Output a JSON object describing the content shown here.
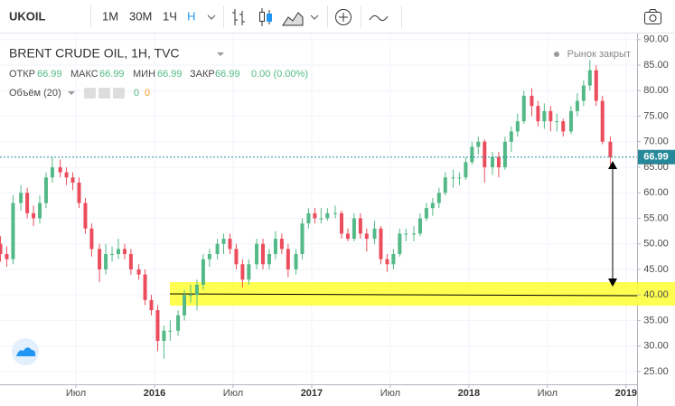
{
  "toolbar": {
    "symbol": "UKOIL",
    "intervals": [
      "1М",
      "30М",
      "1Ч",
      "Н"
    ]
  },
  "legend": {
    "title": "BRENT CRUDE OIL, 1H, TVC",
    "status": "Рынок закрыт",
    "fields": [
      {
        "label": "ОТКР",
        "value": "66.99"
      },
      {
        "label": "МАКС",
        "value": "66.99"
      },
      {
        "label": "МИН",
        "value": "66.99"
      },
      {
        "label": "ЗАКР",
        "value": "66.99"
      }
    ],
    "change": "0.00 (0.00%)",
    "volume": "Объём (20)",
    "volume_values": [
      "0",
      "0"
    ]
  },
  "chart_data": {
    "type": "candlestick",
    "x": [
      2015.02,
      2015.06,
      2015.1,
      2015.15,
      2015.19,
      2015.23,
      2015.27,
      2015.31,
      2015.35,
      2015.4,
      2015.44,
      2015.48,
      2015.52,
      2015.56,
      2015.6,
      2015.65,
      2015.69,
      2015.73,
      2015.77,
      2015.81,
      2015.85,
      2015.9,
      2015.94,
      2015.98,
      2016.02,
      2016.06,
      2016.1,
      2016.15,
      2016.19,
      2016.23,
      2016.27,
      2016.31,
      2016.35,
      2016.4,
      2016.44,
      2016.48,
      2016.52,
      2016.56,
      2016.6,
      2016.65,
      2016.69,
      2016.73,
      2016.77,
      2016.81,
      2016.85,
      2016.9,
      2016.94,
      2016.98,
      2017.02,
      2017.06,
      2017.1,
      2017.15,
      2017.19,
      2017.23,
      2017.27,
      2017.31,
      2017.35,
      2017.4,
      2017.44,
      2017.48,
      2017.52,
      2017.56,
      2017.6,
      2017.65,
      2017.69,
      2017.73,
      2017.77,
      2017.81,
      2017.85,
      2017.9,
      2017.94,
      2017.98,
      2018.02,
      2018.06,
      2018.1,
      2018.15,
      2018.19,
      2018.23,
      2018.27,
      2018.31,
      2018.35,
      2018.4,
      2018.44,
      2018.48,
      2018.52,
      2018.56,
      2018.6,
      2018.65,
      2018.69,
      2018.73,
      2018.77,
      2018.81,
      2018.85,
      2018.9
    ],
    "candles": [
      [
        50,
        51.5,
        46.5,
        48
      ],
      [
        48,
        49.5,
        45.5,
        47
      ],
      [
        47,
        59.5,
        46,
        58
      ],
      [
        58,
        61.5,
        56.5,
        60
      ],
      [
        60,
        61,
        55,
        56
      ],
      [
        56,
        57.5,
        53.5,
        55
      ],
      [
        55,
        59.5,
        54,
        58
      ],
      [
        58,
        64,
        57,
        63
      ],
      [
        63,
        67,
        62,
        65
      ],
      [
        65,
        66.5,
        63,
        64
      ],
      [
        64,
        65,
        61.5,
        63
      ],
      [
        63,
        64,
        60.5,
        62
      ],
      [
        62,
        63,
        57,
        58
      ],
      [
        58,
        59,
        52,
        53
      ],
      [
        53,
        54,
        47.5,
        49
      ],
      [
        49,
        50,
        42.5,
        45
      ],
      [
        45,
        50,
        44,
        48
      ],
      [
        48,
        49.5,
        46.5,
        48
      ],
      [
        48,
        51,
        47,
        49
      ],
      [
        49,
        50,
        47,
        48
      ],
      [
        48,
        49,
        44,
        45
      ],
      [
        45,
        46,
        43,
        44
      ],
      [
        44,
        45,
        38,
        39
      ],
      [
        39,
        40,
        36,
        37
      ],
      [
        37,
        38,
        29,
        31
      ],
      [
        31,
        34,
        27.5,
        33
      ],
      [
        33,
        35,
        31,
        33
      ],
      [
        33,
        37,
        32,
        36
      ],
      [
        36,
        41,
        35,
        40
      ],
      [
        40,
        42,
        38.5,
        40
      ],
      [
        40,
        43,
        37,
        42
      ],
      [
        42,
        48,
        41,
        47
      ],
      [
        47,
        49,
        45.5,
        48
      ],
      [
        48,
        51,
        47,
        50
      ],
      [
        50,
        52,
        48,
        51
      ],
      [
        51,
        52,
        48,
        49
      ],
      [
        49,
        50,
        45,
        46
      ],
      [
        46,
        47,
        41.5,
        43
      ],
      [
        43,
        47,
        42,
        46
      ],
      [
        46,
        51,
        45,
        50
      ],
      [
        50,
        51,
        45,
        46
      ],
      [
        46,
        49,
        45,
        48
      ],
      [
        48,
        52.5,
        47,
        51
      ],
      [
        51,
        52,
        48,
        49
      ],
      [
        49,
        50,
        43.5,
        45
      ],
      [
        45,
        49,
        44,
        48
      ],
      [
        48,
        55,
        47,
        54
      ],
      [
        54,
        57,
        53,
        56
      ],
      [
        56,
        57,
        54,
        55
      ],
      [
        55,
        57,
        54,
        55
      ],
      [
        55,
        57,
        54.5,
        56
      ],
      [
        56,
        57.5,
        55,
        56
      ],
      [
        56,
        56.5,
        51,
        52
      ],
      [
        52,
        53,
        50.5,
        51
      ],
      [
        51,
        56,
        50.5,
        55
      ],
      [
        55,
        56,
        51,
        52
      ],
      [
        52,
        53,
        48.5,
        51
      ],
      [
        51,
        54.5,
        50,
        53
      ],
      [
        53,
        53.5,
        46,
        47
      ],
      [
        47,
        48,
        44.5,
        46
      ],
      [
        46,
        49,
        45,
        48
      ],
      [
        48,
        53,
        47.5,
        52
      ],
      [
        52,
        53,
        50.5,
        52
      ],
      [
        52,
        53.5,
        50.5,
        52
      ],
      [
        52,
        56,
        51.5,
        55
      ],
      [
        55,
        58,
        54.5,
        57
      ],
      [
        57,
        59,
        55.5,
        58
      ],
      [
        58,
        61,
        57,
        60
      ],
      [
        60,
        64,
        59.5,
        63
      ],
      [
        63,
        64.5,
        61,
        63
      ],
      [
        63,
        64,
        61.5,
        63
      ],
      [
        63,
        67,
        62.5,
        66
      ],
      [
        66,
        70,
        65.5,
        69
      ],
      [
        69,
        71,
        67.5,
        70
      ],
      [
        70,
        70.5,
        62,
        65
      ],
      [
        65,
        68,
        63.5,
        67
      ],
      [
        67,
        68,
        63,
        65
      ],
      [
        65,
        71,
        64.5,
        70
      ],
      [
        70,
        73,
        68,
        72
      ],
      [
        72,
        75.5,
        71,
        74
      ],
      [
        74,
        80,
        73.5,
        79
      ],
      [
        79,
        80.5,
        75,
        77
      ],
      [
        77,
        78,
        73,
        74
      ],
      [
        74,
        77.5,
        72.5,
        76
      ],
      [
        76,
        77,
        72,
        74
      ],
      [
        74,
        75.5,
        72,
        74
      ],
      [
        74,
        74.5,
        71,
        72
      ],
      [
        72,
        77,
        71.5,
        76
      ],
      [
        76,
        79.5,
        75,
        78
      ],
      [
        78,
        82,
        77,
        81
      ],
      [
        81,
        86,
        80,
        84
      ],
      [
        84,
        85,
        77,
        78
      ],
      [
        78,
        79,
        69.5,
        70
      ],
      [
        70,
        71,
        65.5,
        67
      ]
    ],
    "up_color": "#53b987",
    "down_color": "#eb4d5c",
    "xlim": [
      2015.017,
      2019.07
    ],
    "xticks": [
      {
        "value": 2015.5,
        "label": "Июл"
      },
      {
        "value": 2016,
        "label": "2016"
      },
      {
        "value": 2016.5,
        "label": "Июл"
      },
      {
        "value": 2017,
        "label": "2017"
      },
      {
        "value": 2017.5,
        "label": "Июл"
      },
      {
        "value": 2018,
        "label": "2018"
      },
      {
        "value": 2018.5,
        "label": "Июл"
      },
      {
        "value": 2019,
        "label": "2019"
      }
    ],
    "ylim": [
      22.5,
      91.2
    ],
    "yticks": [
      {
        "value": 25,
        "label": "25.00"
      },
      {
        "value": 30,
        "label": "30.00"
      },
      {
        "value": 35,
        "label": "35.00"
      },
      {
        "value": 40,
        "label": "40.00"
      },
      {
        "value": 45,
        "label": "45.00"
      },
      {
        "value": 50,
        "label": "50.00"
      },
      {
        "value": 55,
        "label": "55.00"
      },
      {
        "value": 60,
        "label": "60.00"
      },
      {
        "value": 65,
        "label": "65.00"
      },
      {
        "value": 70,
        "label": "70.00"
      },
      {
        "value": 75,
        "label": "75.00"
      },
      {
        "value": 80,
        "label": "80.00"
      },
      {
        "value": 85,
        "label": "85.00"
      },
      {
        "value": 90,
        "label": "90.00"
      }
    ],
    "last_price": 66.99,
    "last_price_color": "#26899a",
    "grid": true
  }
}
